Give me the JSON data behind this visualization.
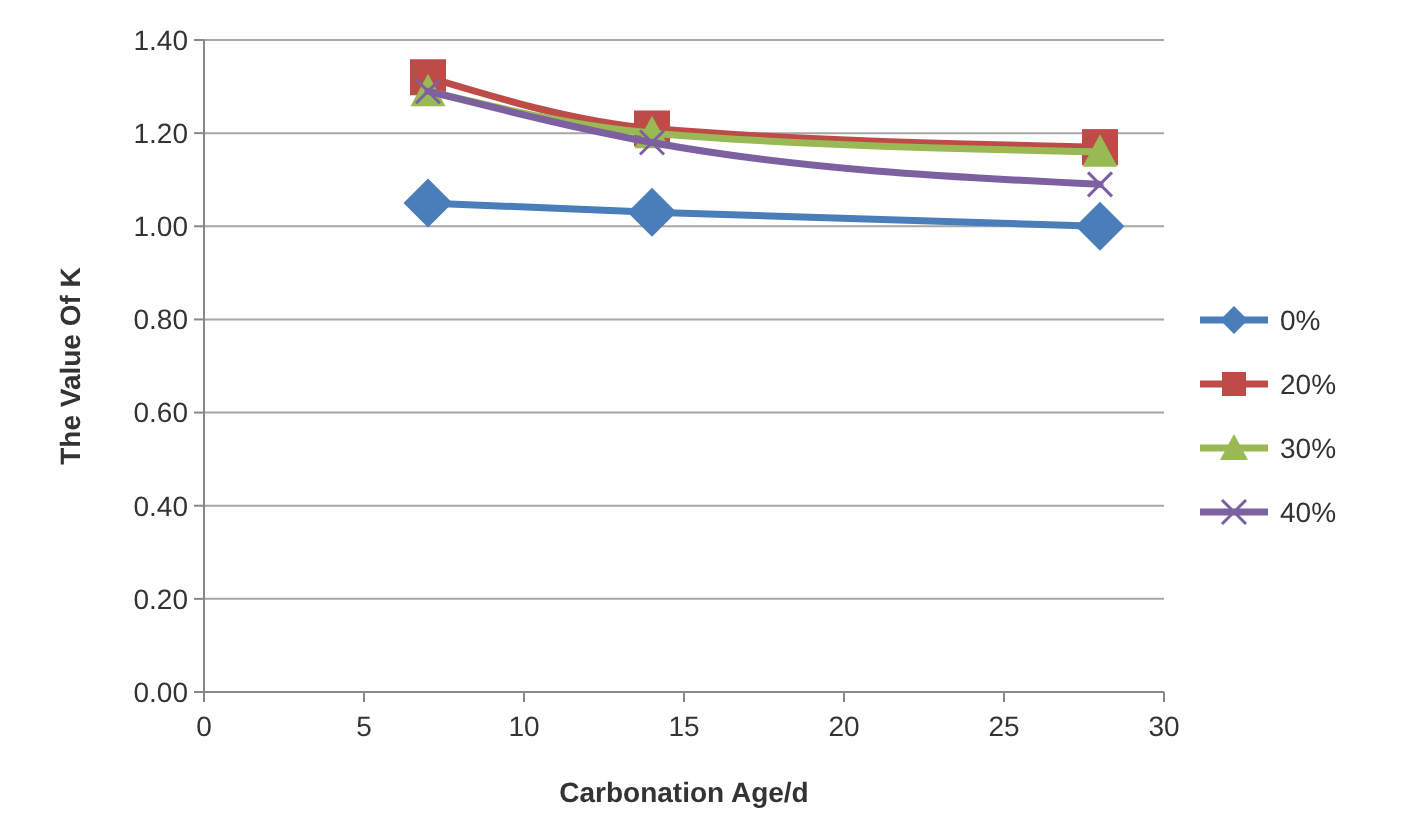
{
  "chart_data": {
    "type": "line",
    "xlabel": "Carbonation Age/d",
    "ylabel": "The Value Of K",
    "x": [
      7,
      14,
      28
    ],
    "series": [
      {
        "name": "0%",
        "color": "#4a7ebb",
        "values": [
          1.05,
          1.03,
          1.0
        ],
        "marker": "diamond"
      },
      {
        "name": "20%",
        "color": "#be4b48",
        "values": [
          1.32,
          1.21,
          1.17
        ],
        "marker": "square"
      },
      {
        "name": "30%",
        "color": "#98b954",
        "values": [
          1.29,
          1.2,
          1.16
        ],
        "marker": "triangle"
      },
      {
        "name": "40%",
        "color": "#7d60a0",
        "values": [
          1.29,
          1.18,
          1.09
        ],
        "marker": "cross"
      }
    ],
    "xlim": [
      0,
      30
    ],
    "xticks": [
      0,
      5,
      10,
      15,
      20,
      25,
      30
    ],
    "ylim": [
      0,
      1.4
    ],
    "yticks": [
      {
        "value": 0,
        "label": "0.00"
      },
      {
        "value": 0.2,
        "label": "0.20"
      },
      {
        "value": 0.4,
        "label": "0.40"
      },
      {
        "value": 0.6,
        "label": "0.60"
      },
      {
        "value": 0.8,
        "label": "0.80"
      },
      {
        "value": 1,
        "label": "1.00"
      },
      {
        "value": 1.2,
        "label": "1.20"
      },
      {
        "value": 1.4,
        "label": "1.40"
      }
    ],
    "grid": "y",
    "legend": "right"
  }
}
